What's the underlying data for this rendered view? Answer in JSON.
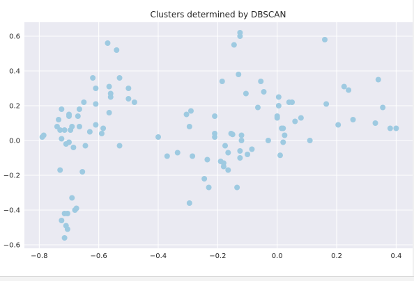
{
  "chart_data": {
    "type": "scatter",
    "title": "Clusters determined by DBSCAN",
    "xlabel": "",
    "ylabel": "",
    "xlim": [
      -0.85,
      0.46
    ],
    "ylim": [
      -0.62,
      0.68
    ],
    "x_ticks": [
      -0.8,
      -0.6,
      -0.4,
      -0.2,
      0.0,
      0.2,
      0.4
    ],
    "y_ticks": [
      -0.6,
      -0.4,
      -0.2,
      0.0,
      0.2,
      0.4,
      0.6
    ],
    "x_tick_labels": [
      "−0.8",
      "−0.6",
      "−0.4",
      "−0.2",
      "0.0",
      "0.2",
      "0.4"
    ],
    "y_tick_labels": [
      "−0.6",
      "−0.4",
      "−0.2",
      "0.0",
      "0.2",
      "0.4",
      "0.6"
    ],
    "grid": true,
    "background_color": "#eaeaf2",
    "grid_color": "#ffffff",
    "point_color": "#9ecae1",
    "series": [
      {
        "points": [
          [
            -0.79,
            0.02
          ],
          [
            -0.785,
            0.03
          ],
          [
            -0.74,
            0.08
          ],
          [
            -0.735,
            0.12
          ],
          [
            -0.73,
            0.06
          ],
          [
            -0.725,
            0.18
          ],
          [
            -0.725,
            0.01
          ],
          [
            -0.715,
            0.06
          ],
          [
            -0.71,
            -0.02
          ],
          [
            -0.7,
            0.15
          ],
          [
            -0.7,
            0.14
          ],
          [
            -0.695,
            0.06
          ],
          [
            -0.7,
            -0.01
          ],
          [
            -0.69,
            0.08
          ],
          [
            -0.685,
            -0.04
          ],
          [
            -0.67,
            0.14
          ],
          [
            -0.665,
            0.18
          ],
          [
            -0.665,
            0.08
          ],
          [
            -0.65,
            0.22
          ],
          [
            -0.645,
            -0.03
          ],
          [
            -0.63,
            0.05
          ],
          [
            -0.62,
            0.36
          ],
          [
            -0.61,
            0.3
          ],
          [
            -0.61,
            0.21
          ],
          [
            -0.61,
            0.09
          ],
          [
            -0.59,
            0.04
          ],
          [
            -0.585,
            0.07
          ],
          [
            -0.57,
            0.56
          ],
          [
            -0.565,
            0.31
          ],
          [
            -0.56,
            0.25
          ],
          [
            -0.56,
            0.27
          ],
          [
            -0.565,
            0.16
          ],
          [
            -0.54,
            0.52
          ],
          [
            -0.53,
            0.36
          ],
          [
            -0.53,
            -0.03
          ],
          [
            -0.5,
            0.3
          ],
          [
            -0.5,
            0.24
          ],
          [
            -0.48,
            0.22
          ],
          [
            -0.73,
            -0.17
          ],
          [
            -0.655,
            -0.18
          ],
          [
            -0.69,
            -0.33
          ],
          [
            -0.68,
            -0.4
          ],
          [
            -0.675,
            -0.39
          ],
          [
            -0.725,
            -0.46
          ],
          [
            -0.715,
            -0.42
          ],
          [
            -0.705,
            -0.42
          ],
          [
            -0.71,
            -0.49
          ],
          [
            -0.705,
            -0.51
          ],
          [
            -0.715,
            -0.56
          ],
          [
            -0.4,
            0.02
          ],
          [
            -0.37,
            -0.09
          ],
          [
            -0.335,
            -0.07
          ],
          [
            -0.305,
            0.15
          ],
          [
            -0.29,
            0.17
          ],
          [
            -0.295,
            0.08
          ],
          [
            -0.285,
            -0.09
          ],
          [
            -0.295,
            -0.36
          ],
          [
            -0.245,
            -0.22
          ],
          [
            -0.235,
            -0.11
          ],
          [
            -0.23,
            -0.27
          ],
          [
            -0.21,
            0.14
          ],
          [
            -0.21,
            0.04
          ],
          [
            -0.21,
            0.02
          ],
          [
            -0.19,
            -0.12
          ],
          [
            -0.18,
            -0.13
          ],
          [
            -0.18,
            -0.15
          ],
          [
            -0.185,
            0.34
          ],
          [
            -0.175,
            -0.03
          ],
          [
            -0.165,
            -0.07
          ],
          [
            -0.165,
            -0.17
          ],
          [
            -0.155,
            0.04
          ],
          [
            -0.15,
            0.035
          ],
          [
            -0.145,
            0.55
          ],
          [
            -0.135,
            -0.27
          ],
          [
            -0.13,
            0.38
          ],
          [
            -0.125,
            0.6
          ],
          [
            -0.125,
            0.62
          ],
          [
            -0.12,
            0.03
          ],
          [
            -0.125,
            -0.06
          ],
          [
            -0.125,
            -0.1
          ],
          [
            -0.12,
            0.0
          ],
          [
            -0.105,
            0.27
          ],
          [
            -0.1,
            -0.08
          ],
          [
            -0.085,
            -0.05
          ],
          [
            -0.065,
            0.19
          ],
          [
            -0.055,
            0.34
          ],
          [
            -0.045,
            0.28
          ],
          [
            -0.03,
            0.0
          ],
          [
            0.0,
            0.13
          ],
          [
            0.0,
            0.14
          ],
          [
            0.005,
            0.25
          ],
          [
            0.005,
            0.2
          ],
          [
            0.01,
            -0.085
          ],
          [
            0.015,
            0.07
          ],
          [
            0.02,
            0.07
          ],
          [
            0.02,
            -0.01
          ],
          [
            0.025,
            0.03
          ],
          [
            0.04,
            0.22
          ],
          [
            0.05,
            0.22
          ],
          [
            0.06,
            0.11
          ],
          [
            0.08,
            0.13
          ],
          [
            0.11,
            0.0
          ],
          [
            0.16,
            0.58
          ],
          [
            0.165,
            0.21
          ],
          [
            0.205,
            0.09
          ],
          [
            0.225,
            0.31
          ],
          [
            0.24,
            0.29
          ],
          [
            0.255,
            0.12
          ],
          [
            0.33,
            0.1
          ],
          [
            0.34,
            0.35
          ],
          [
            0.355,
            0.19
          ],
          [
            0.38,
            0.07
          ],
          [
            0.4,
            0.07
          ]
        ]
      }
    ]
  }
}
